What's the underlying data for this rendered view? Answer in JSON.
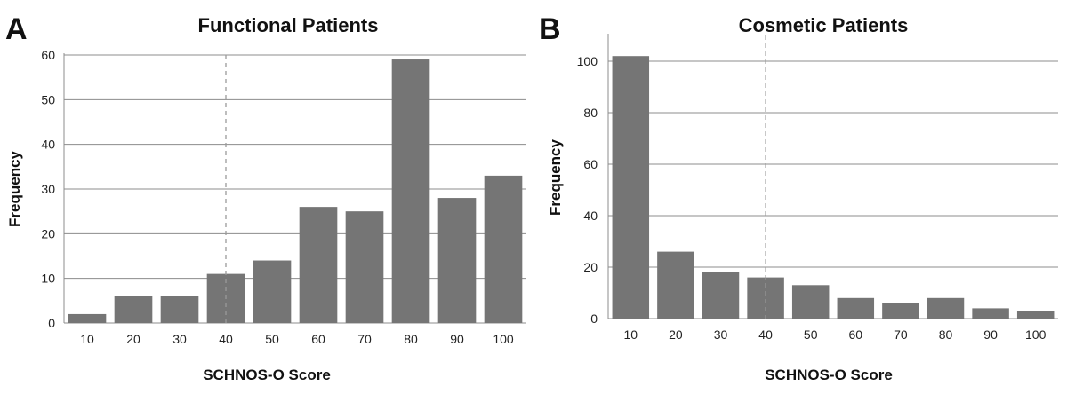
{
  "chart_data": [
    {
      "type": "bar",
      "panel_letter": "A",
      "title": "Functional Patients",
      "xlabel": "SCHNOS-O Score",
      "ylabel": "Frequency",
      "categories": [
        "10",
        "20",
        "30",
        "40",
        "50",
        "60",
        "70",
        "80",
        "90",
        "100"
      ],
      "values": [
        2,
        6,
        6,
        11,
        14,
        26,
        25,
        59,
        28,
        33
      ],
      "ylim": [
        0,
        60
      ],
      "yticks": [
        0,
        10,
        20,
        30,
        40,
        50,
        60
      ],
      "grid": true,
      "reference_line": {
        "style": "dashed",
        "x_category": "40"
      },
      "colors": {
        "bar": "#757575",
        "grid": "#8c8c8c",
        "reference": "#9a9a9a"
      }
    },
    {
      "type": "bar",
      "panel_letter": "B",
      "title": "Cosmetic Patients",
      "xlabel": "SCHNOS-O Score",
      "ylabel": "Frequency",
      "categories": [
        "10",
        "20",
        "30",
        "40",
        "50",
        "60",
        "70",
        "80",
        "90",
        "100"
      ],
      "values": [
        102,
        26,
        18,
        16,
        13,
        8,
        6,
        8,
        4,
        3
      ],
      "ylim": [
        0,
        110
      ],
      "yticks": [
        0,
        20,
        40,
        60,
        80,
        100
      ],
      "grid": true,
      "reference_line": {
        "style": "dashed",
        "x_category": "40"
      },
      "colors": {
        "bar": "#757575",
        "grid": "#8c8c8c",
        "reference": "#9a9a9a"
      }
    }
  ]
}
